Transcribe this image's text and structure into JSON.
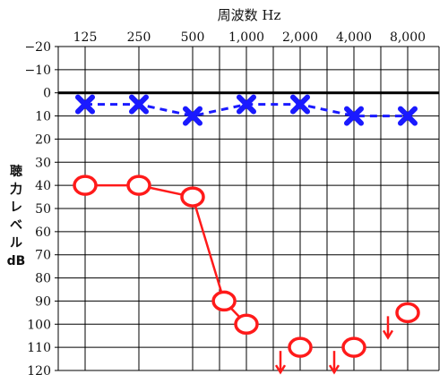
{
  "chart_data": {
    "type": "line",
    "title": "周波数 Hz",
    "ylabel_lines": [
      "聴",
      "力",
      "レ",
      "ベ",
      "ル",
      "dB"
    ],
    "x": [
      "125",
      "250",
      "500",
      "1,000",
      "2,000",
      "4,000",
      "8,000"
    ],
    "y_ticks": [
      "−20",
      "−10",
      "0",
      "10",
      "20",
      "30",
      "40",
      "50",
      "60",
      "70",
      "80",
      "90",
      "100",
      "110",
      "120"
    ],
    "ylim": [
      -20,
      120
    ],
    "y_inverted": true,
    "grid": true,
    "series": [
      {
        "symbol": "x",
        "color": "#1a1aff",
        "line_style": "dashed",
        "points": [
          {
            "x": "125",
            "y": 5
          },
          {
            "x": "250",
            "y": 5
          },
          {
            "x": "500",
            "y": 10
          },
          {
            "x": "1,000",
            "y": 5
          },
          {
            "x": "2,000",
            "y": 5
          },
          {
            "x": "4,000",
            "y": 10
          },
          {
            "x": "8,000",
            "y": 10
          }
        ]
      },
      {
        "symbol": "circle",
        "color": "#ff1a1a",
        "line_style": "solid",
        "points": [
          {
            "x": "125",
            "y": 40
          },
          {
            "x": "250",
            "y": 40
          },
          {
            "x": "500",
            "y": 45
          },
          {
            "x": "750",
            "y": 90
          },
          {
            "x": "1,000",
            "y": 100
          },
          {
            "x": "2,000",
            "y": 110,
            "no_response": true
          },
          {
            "x": "4,000",
            "y": 110,
            "no_response": true
          },
          {
            "x": "8,000",
            "y": 95,
            "no_response": true
          }
        ]
      }
    ]
  }
}
